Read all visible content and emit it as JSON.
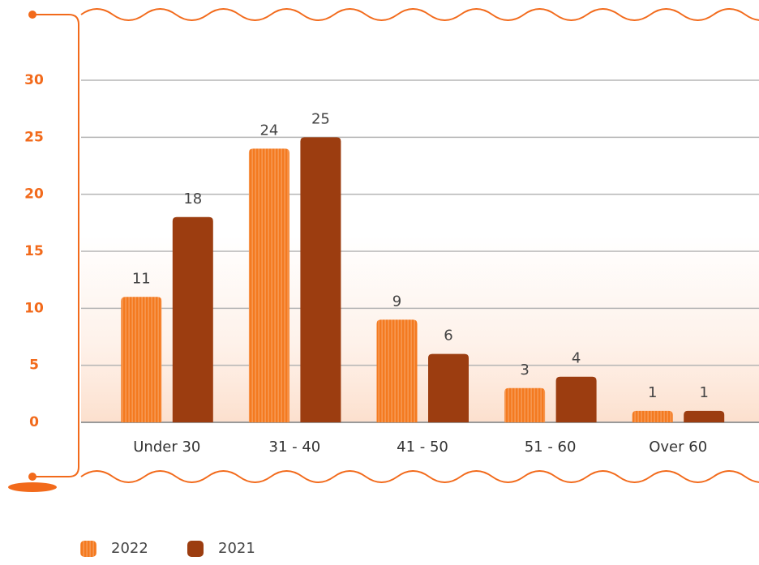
{
  "chart_data": {
    "type": "bar",
    "categories": [
      "Under 30",
      "31 - 40",
      "41 - 50",
      "51 - 60",
      "Over 60"
    ],
    "series": [
      {
        "name": "2022",
        "color": "#f47a20",
        "values": [
          11,
          24,
          9,
          3,
          1
        ]
      },
      {
        "name": "2021",
        "color": "#9c3d10",
        "values": [
          18,
          25,
          6,
          4,
          1
        ]
      }
    ],
    "ylim": [
      0,
      30
    ],
    "yticks": [
      0,
      5,
      10,
      15,
      20,
      25,
      30
    ],
    "grid": true
  }
}
